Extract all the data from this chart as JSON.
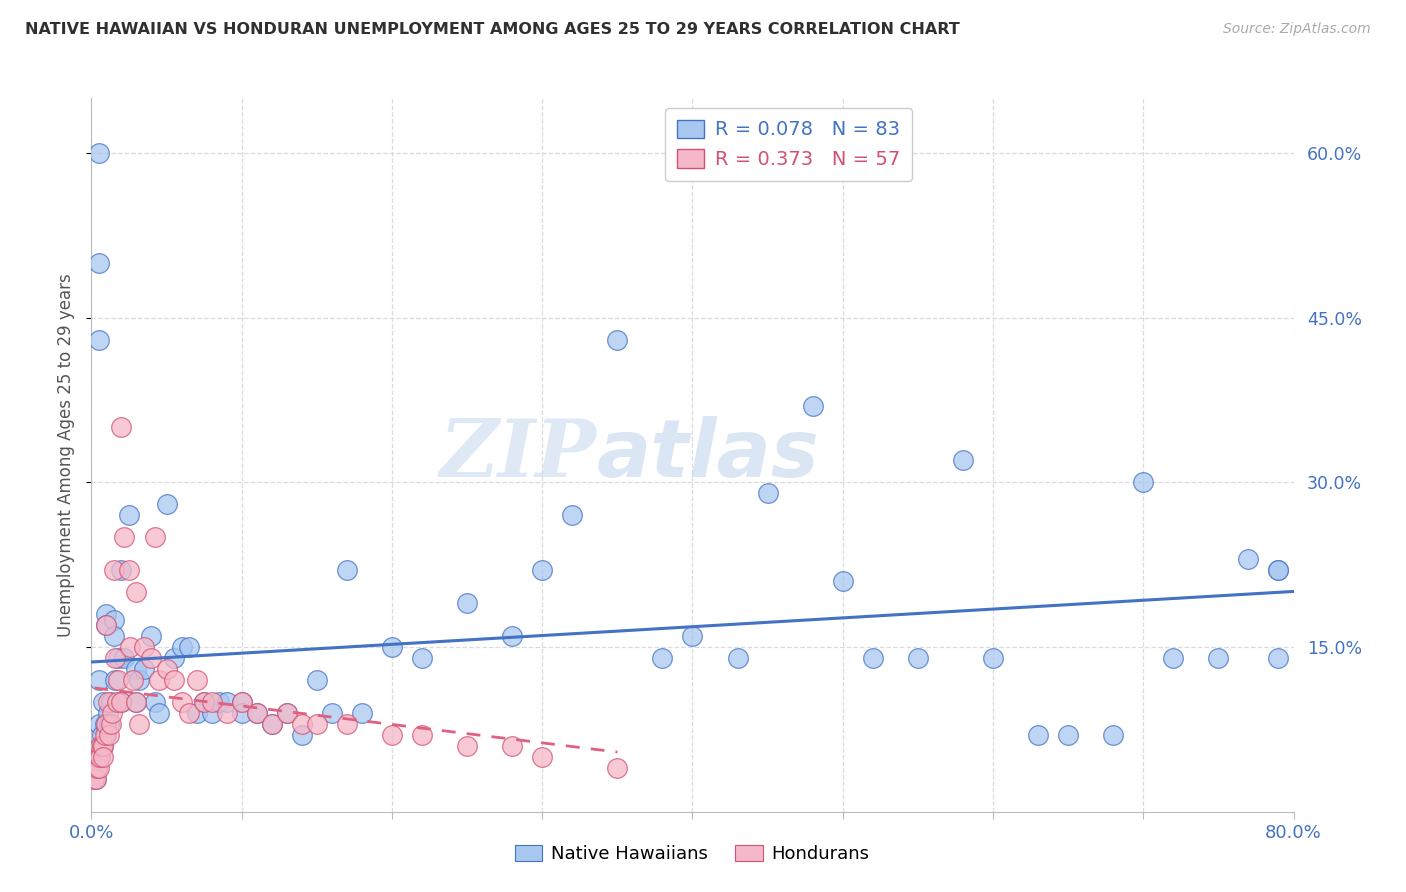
{
  "title": "NATIVE HAWAIIAN VS HONDURAN UNEMPLOYMENT AMONG AGES 25 TO 29 YEARS CORRELATION CHART",
  "source": "Source: ZipAtlas.com",
  "ylabel": "Unemployment Among Ages 25 to 29 years",
  "xlim": [
    0.0,
    0.8
  ],
  "ylim": [
    0.0,
    0.65
  ],
  "y_tick_vals": [
    0.15,
    0.3,
    0.45,
    0.6
  ],
  "y_tick_labels": [
    "15.0%",
    "30.0%",
    "45.0%",
    "60.0%"
  ],
  "x_tick_vals": [
    0.0,
    0.1,
    0.2,
    0.3,
    0.4,
    0.5,
    0.6,
    0.7,
    0.8
  ],
  "legend_labels_bottom": [
    "Native Hawaiians",
    "Hondurans"
  ],
  "watermark_zip": "ZIP",
  "watermark_atlas": "atlas",
  "blue_fill": "#a8c8f0",
  "blue_edge": "#4472c4",
  "pink_fill": "#f5b8c8",
  "pink_edge": "#d45070",
  "blue_line_color": "#4472c4",
  "pink_line_color": "#e06080",
  "grid_color": "#d8d8d8",
  "right_tick_color": "#4472c4",
  "nh_R": 0.078,
  "hon_R": 0.373,
  "nh_N": 83,
  "hon_N": 57,
  "nh_x": [
    0.002,
    0.003,
    0.003,
    0.004,
    0.004,
    0.005,
    0.005,
    0.005,
    0.005,
    0.005,
    0.006,
    0.006,
    0.007,
    0.008,
    0.008,
    0.009,
    0.01,
    0.01,
    0.01,
    0.011,
    0.012,
    0.013,
    0.015,
    0.015,
    0.016,
    0.018,
    0.02,
    0.02,
    0.022,
    0.025,
    0.03,
    0.03,
    0.032,
    0.035,
    0.04,
    0.042,
    0.045,
    0.05,
    0.055,
    0.06,
    0.065,
    0.07,
    0.075,
    0.08,
    0.085,
    0.09,
    0.1,
    0.1,
    0.11,
    0.12,
    0.13,
    0.14,
    0.15,
    0.16,
    0.17,
    0.18,
    0.2,
    0.22,
    0.25,
    0.28,
    0.3,
    0.32,
    0.35,
    0.38,
    0.4,
    0.43,
    0.45,
    0.48,
    0.5,
    0.52,
    0.55,
    0.58,
    0.6,
    0.63,
    0.65,
    0.68,
    0.7,
    0.72,
    0.75,
    0.77,
    0.79,
    0.79,
    0.79
  ],
  "nh_y": [
    0.05,
    0.04,
    0.03,
    0.05,
    0.04,
    0.6,
    0.5,
    0.43,
    0.12,
    0.08,
    0.06,
    0.05,
    0.07,
    0.1,
    0.06,
    0.08,
    0.18,
    0.17,
    0.07,
    0.09,
    0.08,
    0.1,
    0.175,
    0.16,
    0.12,
    0.14,
    0.22,
    0.1,
    0.14,
    0.27,
    0.13,
    0.1,
    0.12,
    0.13,
    0.16,
    0.1,
    0.09,
    0.28,
    0.14,
    0.15,
    0.15,
    0.09,
    0.1,
    0.09,
    0.1,
    0.1,
    0.1,
    0.09,
    0.09,
    0.08,
    0.09,
    0.07,
    0.12,
    0.09,
    0.22,
    0.09,
    0.15,
    0.14,
    0.19,
    0.16,
    0.22,
    0.27,
    0.43,
    0.14,
    0.16,
    0.14,
    0.29,
    0.37,
    0.21,
    0.14,
    0.14,
    0.32,
    0.14,
    0.07,
    0.07,
    0.07,
    0.3,
    0.14,
    0.14,
    0.23,
    0.22,
    0.14,
    0.22
  ],
  "hon_x": [
    0.002,
    0.003,
    0.003,
    0.004,
    0.004,
    0.005,
    0.005,
    0.006,
    0.006,
    0.007,
    0.008,
    0.008,
    0.009,
    0.01,
    0.01,
    0.011,
    0.012,
    0.013,
    0.014,
    0.015,
    0.016,
    0.017,
    0.018,
    0.02,
    0.02,
    0.022,
    0.025,
    0.026,
    0.028,
    0.03,
    0.03,
    0.032,
    0.035,
    0.04,
    0.042,
    0.045,
    0.05,
    0.055,
    0.06,
    0.065,
    0.07,
    0.075,
    0.08,
    0.09,
    0.1,
    0.11,
    0.12,
    0.13,
    0.14,
    0.15,
    0.17,
    0.2,
    0.22,
    0.25,
    0.28,
    0.3,
    0.35
  ],
  "hon_y": [
    0.03,
    0.04,
    0.03,
    0.04,
    0.05,
    0.05,
    0.04,
    0.06,
    0.05,
    0.06,
    0.06,
    0.05,
    0.07,
    0.17,
    0.08,
    0.1,
    0.07,
    0.08,
    0.09,
    0.22,
    0.14,
    0.1,
    0.12,
    0.35,
    0.1,
    0.25,
    0.22,
    0.15,
    0.12,
    0.2,
    0.1,
    0.08,
    0.15,
    0.14,
    0.25,
    0.12,
    0.13,
    0.12,
    0.1,
    0.09,
    0.12,
    0.1,
    0.1,
    0.09,
    0.1,
    0.09,
    0.08,
    0.09,
    0.08,
    0.08,
    0.08,
    0.07,
    0.07,
    0.06,
    0.06,
    0.05,
    0.04
  ]
}
